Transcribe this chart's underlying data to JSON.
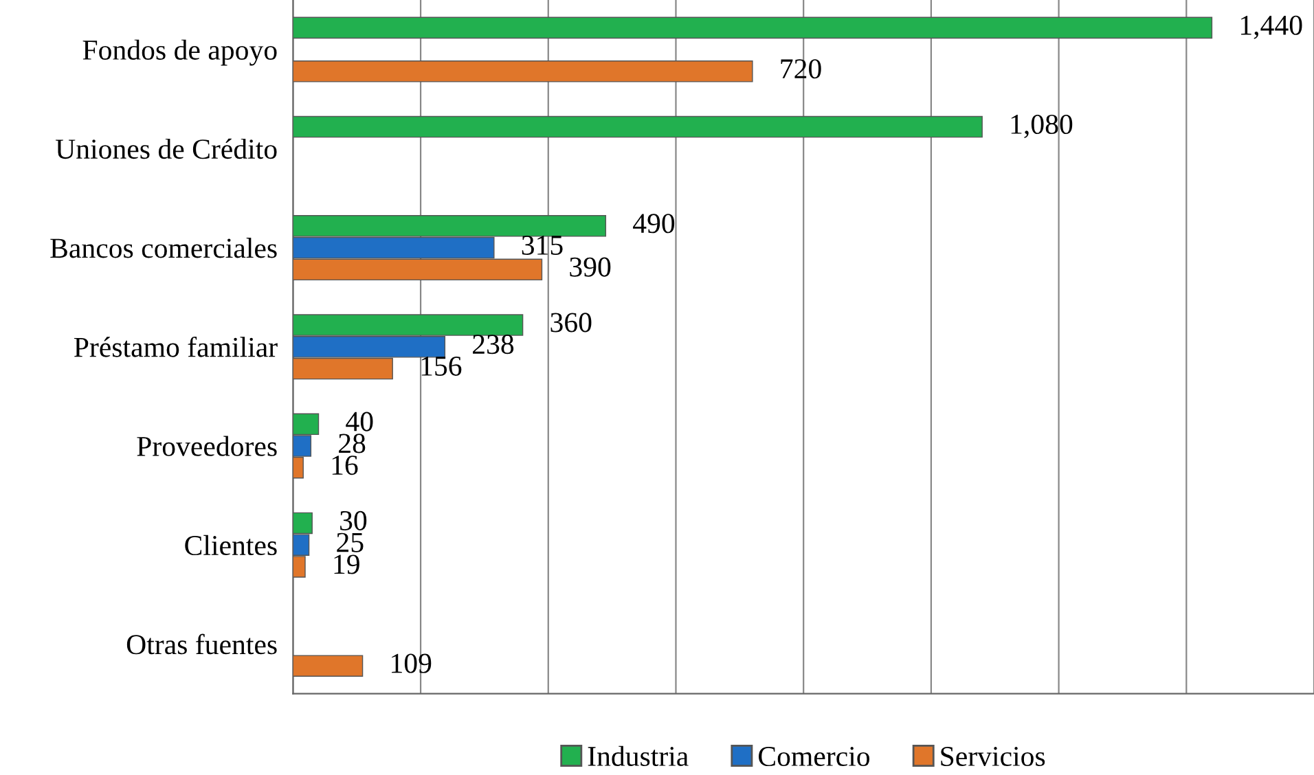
{
  "chart_data": {
    "type": "bar",
    "orientation": "horizontal",
    "categories": [
      "Fondos de apoyo",
      "Uniones de Crédito",
      "Bancos comerciales",
      "Préstamo familiar",
      "Proveedores",
      "Clientes",
      "Otras fuentes"
    ],
    "series": [
      {
        "name": "Industria",
        "color": "#22b04f",
        "values": [
          1440,
          1080,
          490,
          360,
          40,
          30,
          null
        ],
        "value_labels": [
          "1,440",
          "1,080",
          "490",
          "360",
          "40",
          "30",
          null
        ]
      },
      {
        "name": "Comercio",
        "color": "#1f6fc5",
        "values": [
          null,
          null,
          315,
          238,
          28,
          25,
          null
        ],
        "value_labels": [
          null,
          null,
          "315",
          "238",
          "28",
          "25",
          null
        ]
      },
      {
        "name": "Servicios",
        "color": "#e0762a",
        "values": [
          720,
          null,
          390,
          156,
          16,
          19,
          109
        ],
        "value_labels": [
          "720",
          null,
          "390",
          "156",
          "16",
          "19",
          "109"
        ]
      }
    ],
    "xlim": [
      0,
      1600
    ],
    "xticks": [
      {
        "value": 0,
        "label": null
      },
      {
        "value": 200,
        "label": null
      },
      {
        "value": 400,
        "label": null
      },
      {
        "value": 600,
        "label": null
      },
      {
        "value": 800,
        "label": null
      },
      {
        "value": 1000,
        "label": null
      },
      {
        "value": 1200,
        "label": null
      },
      {
        "value": 1400,
        "label": null
      },
      {
        "value": 1600,
        "label": null
      }
    ],
    "tick_labels": "y",
    "grid": "x",
    "legend": "bottom"
  }
}
